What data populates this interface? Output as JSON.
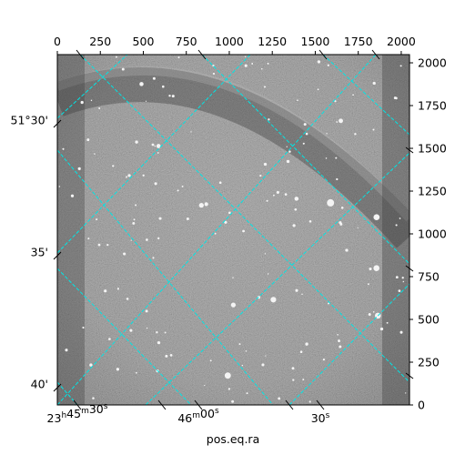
{
  "chart_data": {
    "type": "heatmap",
    "title": "",
    "xlabel": "pos.eq.ra",
    "ylabel": "",
    "pixel_axes": {
      "x_ticks": [
        "0",
        "250",
        "500",
        "750",
        "1000",
        "1250",
        "1500",
        "1750",
        "2000"
      ],
      "x_tick_values": [
        0,
        250,
        500,
        750,
        1000,
        1250,
        1500,
        1750,
        2000
      ],
      "y_ticks": [
        "0",
        "250",
        "500",
        "750",
        "1000",
        "1250",
        "1500",
        "1750",
        "2000"
      ],
      "y_tick_values": [
        0,
        250,
        500,
        750,
        1000,
        1250,
        1500,
        1750,
        2000
      ],
      "xlim": [
        0,
        2048
      ],
      "ylim": [
        0,
        2048
      ]
    },
    "world_axes": {
      "ra_labels": [
        {
          "label": "23h45m30s",
          "h": "23",
          "m": "45",
          "s": "30"
        },
        {
          "label": "46m00s",
          "h": "",
          "m": "46",
          "s": "00"
        },
        {
          "label": "30s",
          "h": "",
          "m": "",
          "s": "30"
        }
      ],
      "dec_labels": [
        "51°30'",
        "35'",
        "40'"
      ]
    },
    "grid": true,
    "grid_color": "#00e5e5",
    "colormap": "gray"
  }
}
